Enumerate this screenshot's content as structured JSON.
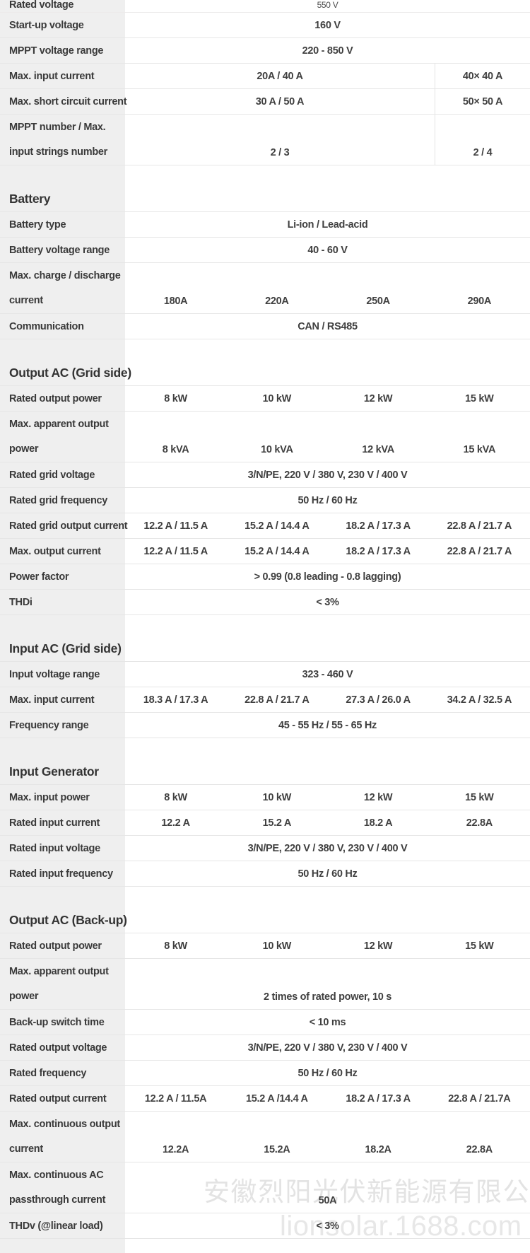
{
  "watermark": {
    "company": "安徽烈阳光伏新能源有限公司",
    "url": "lionsolar.1688.com"
  },
  "table": {
    "sections": [
      {
        "heading": null,
        "rows": [
          {
            "label": [
              "Rated voltage"
            ],
            "partial": true,
            "cells": [
              {
                "t": "550 V",
                "s": 4,
                "small": true
              }
            ]
          },
          {
            "label": [
              "Start-up voltage"
            ],
            "cells": [
              {
                "t": "160 V",
                "s": 4
              }
            ]
          },
          {
            "label": [
              "MPPT voltage range"
            ],
            "cells": [
              {
                "t": "220 - 850 V",
                "s": 4
              }
            ]
          },
          {
            "label": [
              "Max. input current"
            ],
            "cells": [
              {
                "t": "20A / 40 A",
                "s": 3
              },
              {
                "t": "40× 40 A",
                "s": 1,
                "div": true
              }
            ]
          },
          {
            "label": [
              "Max. short circuit current"
            ],
            "cells": [
              {
                "t": "30 A / 50 A",
                "s": 3
              },
              {
                "t": "50× 50 A",
                "s": 1,
                "div": true
              }
            ]
          },
          {
            "label": [
              "MPPT number / Max.",
              "input strings number"
            ],
            "double": true,
            "cells": [
              {
                "t": "2 / 3",
                "s": 3
              },
              {
                "t": "2 / 4",
                "s": 1,
                "div": true
              }
            ]
          }
        ]
      },
      {
        "heading": "Battery",
        "rows": [
          {
            "label": [
              "Battery type"
            ],
            "cells": [
              {
                "t": "Li-ion / Lead-acid",
                "s": 4
              }
            ]
          },
          {
            "label": [
              "Battery voltage range"
            ],
            "cells": [
              {
                "t": "40 - 60 V",
                "s": 4
              }
            ]
          },
          {
            "label": [
              "Max. charge / discharge",
              "current"
            ],
            "double": true,
            "cells": [
              {
                "t": "180A",
                "s": 1
              },
              {
                "t": "220A",
                "s": 1
              },
              {
                "t": "250A",
                "s": 1
              },
              {
                "t": "290A",
                "s": 1
              }
            ]
          },
          {
            "label": [
              "Communication"
            ],
            "cells": [
              {
                "t": "CAN / RS485",
                "s": 4
              }
            ]
          }
        ]
      },
      {
        "heading": "Output AC (Grid side)",
        "rows": [
          {
            "label": [
              "Rated output power"
            ],
            "cells": [
              {
                "t": "8 kW",
                "s": 1
              },
              {
                "t": "10 kW",
                "s": 1
              },
              {
                "t": "12 kW",
                "s": 1
              },
              {
                "t": "15 kW",
                "s": 1
              }
            ]
          },
          {
            "label": [
              "Max. apparent output",
              "power"
            ],
            "double": true,
            "cells": [
              {
                "t": "8 kVA",
                "s": 1
              },
              {
                "t": "10 kVA",
                "s": 1
              },
              {
                "t": "12 kVA",
                "s": 1
              },
              {
                "t": "15 kVA",
                "s": 1
              }
            ]
          },
          {
            "label": [
              "Rated grid voltage"
            ],
            "cells": [
              {
                "t": "3/N/PE, 220 V / 380 V, 230 V / 400 V",
                "s": 4
              }
            ]
          },
          {
            "label": [
              "Rated grid frequency"
            ],
            "cells": [
              {
                "t": "50 Hz / 60 Hz",
                "s": 4
              }
            ]
          },
          {
            "label": [
              "Rated grid output current"
            ],
            "cells": [
              {
                "t": "12.2 A / 11.5 A",
                "s": 1
              },
              {
                "t": "15.2 A / 14.4 A",
                "s": 1
              },
              {
                "t": "18.2 A / 17.3 A",
                "s": 1
              },
              {
                "t": "22.8 A / 21.7 A",
                "s": 1
              }
            ]
          },
          {
            "label": [
              "Max. output current"
            ],
            "cells": [
              {
                "t": "12.2 A / 11.5 A",
                "s": 1
              },
              {
                "t": "15.2 A / 14.4 A",
                "s": 1
              },
              {
                "t": "18.2 A / 17.3 A",
                "s": 1
              },
              {
                "t": "22.8 A / 21.7 A",
                "s": 1
              }
            ]
          },
          {
            "label": [
              "Power factor"
            ],
            "cells": [
              {
                "t": "> 0.99 (0.8 leading - 0.8 lagging)",
                "s": 4
              }
            ]
          },
          {
            "label": [
              "THDi"
            ],
            "cells": [
              {
                "t": "< 3%",
                "s": 4
              }
            ]
          }
        ]
      },
      {
        "heading": "Input AC (Grid side)",
        "rows": [
          {
            "label": [
              "Input voltage range"
            ],
            "cells": [
              {
                "t": "323 - 460 V",
                "s": 4
              }
            ]
          },
          {
            "label": [
              "Max. input current"
            ],
            "cells": [
              {
                "t": "18.3 A / 17.3 A",
                "s": 1
              },
              {
                "t": "22.8 A / 21.7 A",
                "s": 1
              },
              {
                "t": "27.3 A / 26.0 A",
                "s": 1
              },
              {
                "t": "34.2 A / 32.5 A",
                "s": 1
              }
            ]
          },
          {
            "label": [
              "Frequency range"
            ],
            "cells": [
              {
                "t": "45 - 55 Hz / 55 - 65 Hz",
                "s": 4
              }
            ]
          }
        ]
      },
      {
        "heading": "Input Generator",
        "rows": [
          {
            "label": [
              "Max. input power"
            ],
            "cells": [
              {
                "t": "8 kW",
                "s": 1
              },
              {
                "t": "10 kW",
                "s": 1
              },
              {
                "t": "12 kW",
                "s": 1
              },
              {
                "t": "15 kW",
                "s": 1
              }
            ]
          },
          {
            "label": [
              "Rated input current"
            ],
            "cells": [
              {
                "t": "12.2 A",
                "s": 1
              },
              {
                "t": "15.2 A",
                "s": 1
              },
              {
                "t": "18.2 A",
                "s": 1
              },
              {
                "t": "22.8A",
                "s": 1
              }
            ]
          },
          {
            "label": [
              "Rated input voltage"
            ],
            "cells": [
              {
                "t": "3/N/PE, 220 V / 380 V, 230 V / 400 V",
                "s": 4
              }
            ]
          },
          {
            "label": [
              "Rated input frequency"
            ],
            "cells": [
              {
                "t": "50 Hz / 60 Hz",
                "s": 4
              }
            ]
          }
        ]
      },
      {
        "heading": "Output AC (Back-up)",
        "rows": [
          {
            "label": [
              "Rated output power"
            ],
            "cells": [
              {
                "t": "8 kW",
                "s": 1
              },
              {
                "t": "10 kW",
                "s": 1
              },
              {
                "t": "12 kW",
                "s": 1
              },
              {
                "t": "15 kW",
                "s": 1
              }
            ]
          },
          {
            "label": [
              "Max. apparent output",
              "power"
            ],
            "double": true,
            "cells": [
              {
                "t": "2 times of rated power, 10 s",
                "s": 4
              }
            ]
          },
          {
            "label": [
              "Back-up switch time"
            ],
            "cells": [
              {
                "t": "< 10 ms",
                "s": 4
              }
            ]
          },
          {
            "label": [
              "Rated output voltage"
            ],
            "cells": [
              {
                "t": "3/N/PE, 220 V / 380 V, 230 V / 400 V",
                "s": 4
              }
            ]
          },
          {
            "label": [
              "Rated frequency"
            ],
            "cells": [
              {
                "t": "50 Hz / 60 Hz",
                "s": 4
              }
            ]
          },
          {
            "label": [
              "Rated output current"
            ],
            "cells": [
              {
                "t": "12.2 A / 11.5A",
                "s": 1
              },
              {
                "t": "15.2 A /14.4 A",
                "s": 1
              },
              {
                "t": "18.2 A / 17.3 A",
                "s": 1
              },
              {
                "t": "22.8 A / 21.7A",
                "s": 1
              }
            ]
          },
          {
            "label": [
              "Max. continuous output",
              "current"
            ],
            "double": true,
            "cells": [
              {
                "t": "12.2A",
                "s": 1
              },
              {
                "t": "15.2A",
                "s": 1
              },
              {
                "t": "18.2A",
                "s": 1
              },
              {
                "t": "22.8A",
                "s": 1
              }
            ]
          },
          {
            "label": [
              "Max. continuous AC",
              "passthrough current"
            ],
            "double": true,
            "cells": [
              {
                "t": "50A",
                "s": 4
              }
            ]
          },
          {
            "label": [
              "THDv (@linear load)"
            ],
            "cells": [
              {
                "t": "< 3%",
                "s": 4
              }
            ]
          }
        ]
      }
    ]
  }
}
